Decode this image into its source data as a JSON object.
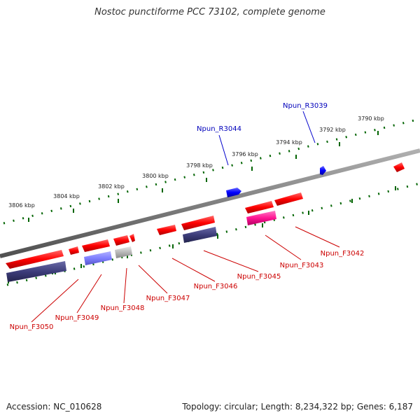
{
  "title": "Nostoc punctiforme PCC 73102, complete genome",
  "footer": {
    "accession": "Accession: NC_010628",
    "summary": "Topology: circular; Length: 8,234,322 bp; Genes: 6,187"
  },
  "scale_ticks": [
    "3790 kbp",
    "3792 kbp",
    "3794 kbp",
    "3796 kbp",
    "3798 kbp",
    "3800 kbp",
    "3802 kbp",
    "3804 kbp",
    "3806 kbp"
  ],
  "reverse_labels": [
    "Npun_R3039",
    "Npun_R3044"
  ],
  "forward_labels": [
    "Npun_F3042",
    "Npun_F3043",
    "Npun_F3045",
    "Npun_F3046",
    "Npun_F3047",
    "Npun_F3048",
    "Npun_F3049",
    "Npun_F3050"
  ],
  "colors": {
    "backbone": "#808080",
    "forward_gene": "#ff0000",
    "reverse_gene": "#0000ff",
    "dark_feature": "#3d3d7a",
    "light_feature": "#7f7fff",
    "grey_feature": "#b0b0b0",
    "pink_feature": "#ff1493",
    "forward_label": "#cc0000",
    "reverse_label": "#0000bb",
    "scale": "#006400"
  }
}
